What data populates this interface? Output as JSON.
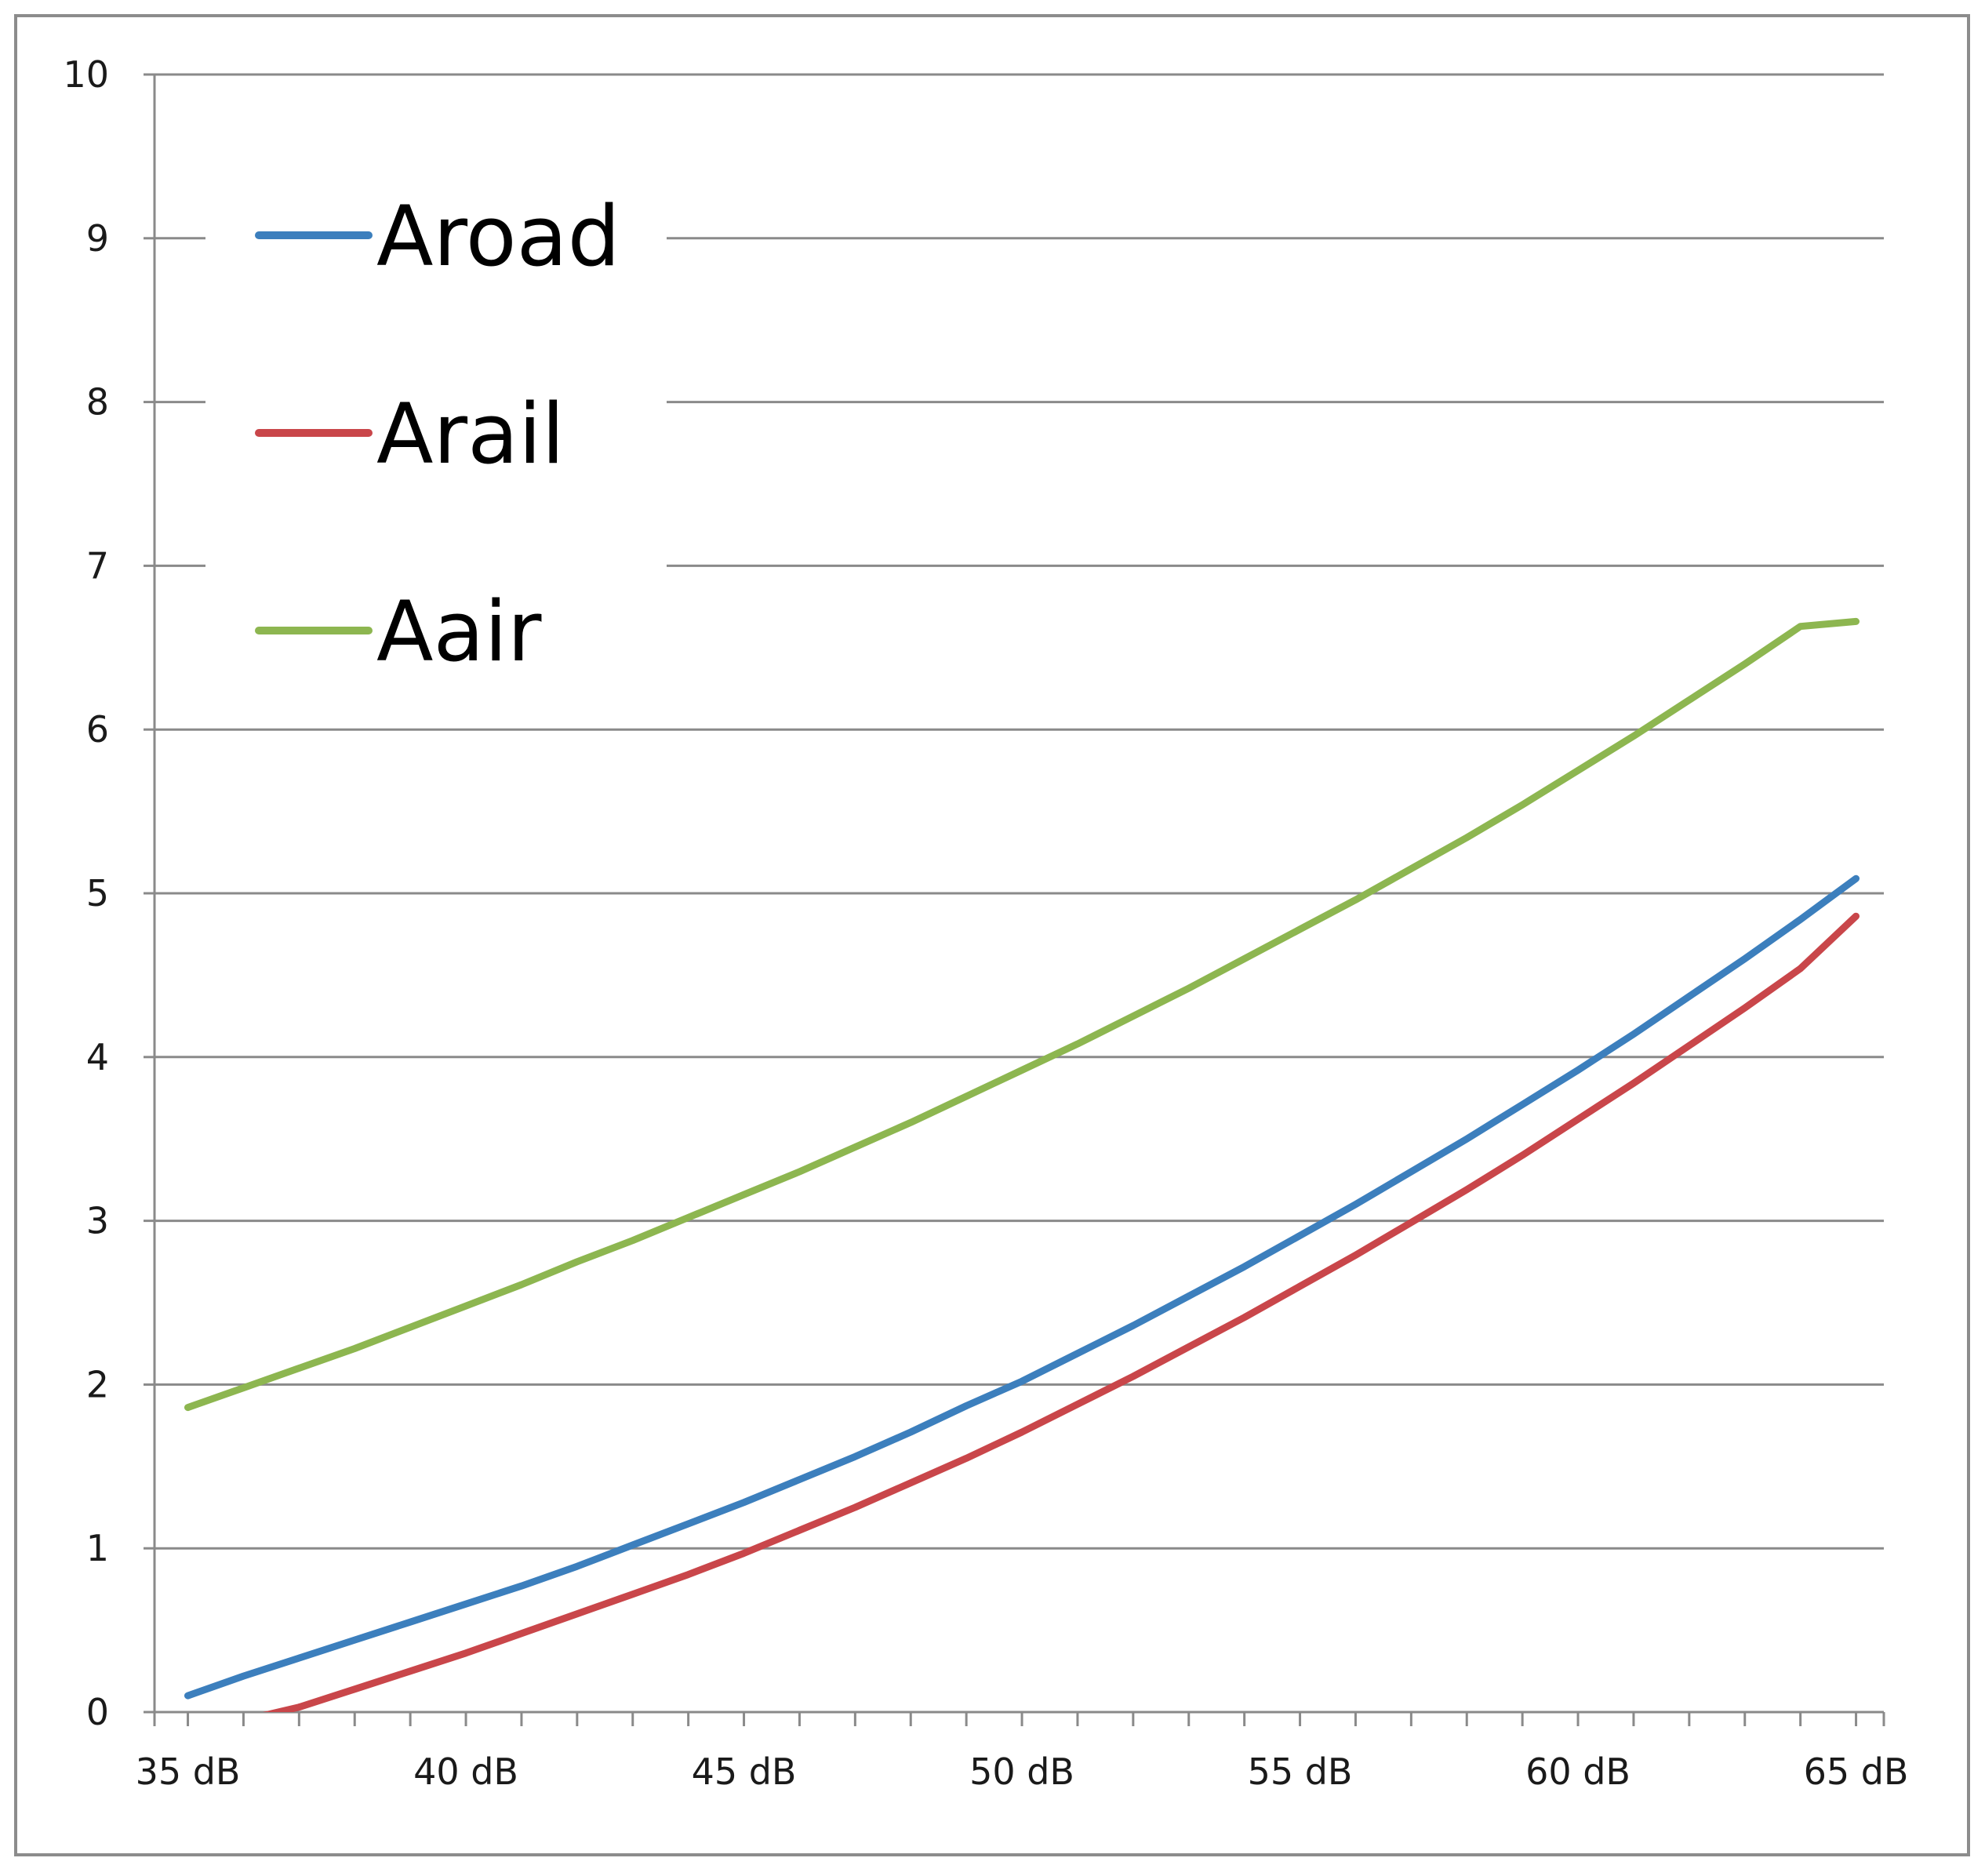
{
  "chart_data": {
    "type": "line",
    "title": "",
    "xlabel": "",
    "ylabel": "",
    "x": [
      35,
      36,
      37,
      38,
      39,
      40,
      41,
      42,
      43,
      44,
      45,
      46,
      47,
      48,
      49,
      50,
      51,
      52,
      53,
      54,
      55,
      56,
      57,
      58,
      59,
      60,
      61,
      62,
      63,
      64,
      65
    ],
    "x_tick_values": [
      35,
      40,
      45,
      50,
      55,
      60,
      65
    ],
    "x_tick_labels": [
      "35 dB",
      "40 dB",
      "45 dB",
      "50 dB",
      "55 dB",
      "60 dB",
      "65 dB"
    ],
    "xlim": [
      34.4,
      65.5
    ],
    "y_tick_labels": [
      "0",
      "1",
      "2",
      "3",
      "4",
      "5",
      "6",
      "7",
      "8",
      "9",
      "10"
    ],
    "ylim": [
      0,
      10
    ],
    "grid": "horizontal",
    "legend": "top-left",
    "series": [
      {
        "name": "Aroad",
        "color": "#3c7fbd",
        "values": [
          0.1,
          0.22,
          0.33,
          0.44,
          0.55,
          0.66,
          0.77,
          0.89,
          1.02,
          1.15,
          1.28,
          1.42,
          1.56,
          1.71,
          1.87,
          2.02,
          2.19,
          2.36,
          2.54,
          2.72,
          2.91,
          3.1,
          3.3,
          3.5,
          3.71,
          3.92,
          4.14,
          4.37,
          4.6,
          4.84,
          5.09
        ]
      },
      {
        "name": "Arail",
        "color": "#c9464a",
        "values": [
          -0.1,
          -0.05,
          0.03,
          0.14,
          0.25,
          0.36,
          0.48,
          0.6,
          0.72,
          0.84,
          0.97,
          1.11,
          1.25,
          1.4,
          1.55,
          1.71,
          1.88,
          2.05,
          2.23,
          2.41,
          2.6,
          2.79,
          2.99,
          3.19,
          3.4,
          3.62,
          3.84,
          4.07,
          4.3,
          4.54,
          4.86
        ]
      },
      {
        "name": "Aair",
        "color": "#8db650",
        "values": [
          1.86,
          1.98,
          2.1,
          2.22,
          2.35,
          2.48,
          2.61,
          2.75,
          2.88,
          3.02,
          3.16,
          3.3,
          3.45,
          3.6,
          3.76,
          3.92,
          4.08,
          4.25,
          4.42,
          4.6,
          4.78,
          4.96,
          5.15,
          5.34,
          5.54,
          5.75,
          5.96,
          6.18,
          6.4,
          6.63,
          6.66
        ]
      }
    ]
  }
}
